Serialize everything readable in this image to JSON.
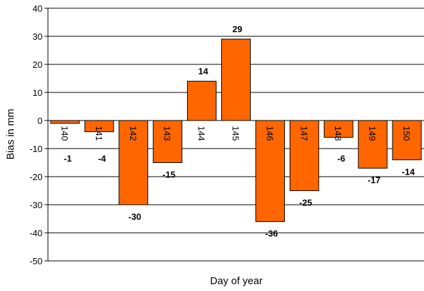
{
  "chart_data": {
    "type": "bar",
    "categories": [
      "140",
      "141",
      "142",
      "143",
      "144",
      "145",
      "146",
      "147",
      "148",
      "149",
      "150"
    ],
    "values": [
      -1,
      -4,
      -30,
      -15,
      14,
      29,
      -36,
      -25,
      -6,
      -17,
      -14
    ],
    "data_labels": [
      "-1",
      "-4",
      "-30",
      "-15",
      "14",
      "29",
      "-36",
      "-25",
      "-6",
      "-17",
      "-14"
    ],
    "yticks": [
      "40",
      "30",
      "20",
      "10",
      "0",
      "-10",
      "-20",
      "-30",
      "-40",
      "-50"
    ],
    "title": "",
    "xlabel": "Day of year",
    "ylabel": "Bias  in  mm",
    "ylim": [
      -50,
      40
    ],
    "grid": true,
    "legend": "none",
    "bar_color": "#ff6600",
    "bar_edge_color": "#000000"
  }
}
